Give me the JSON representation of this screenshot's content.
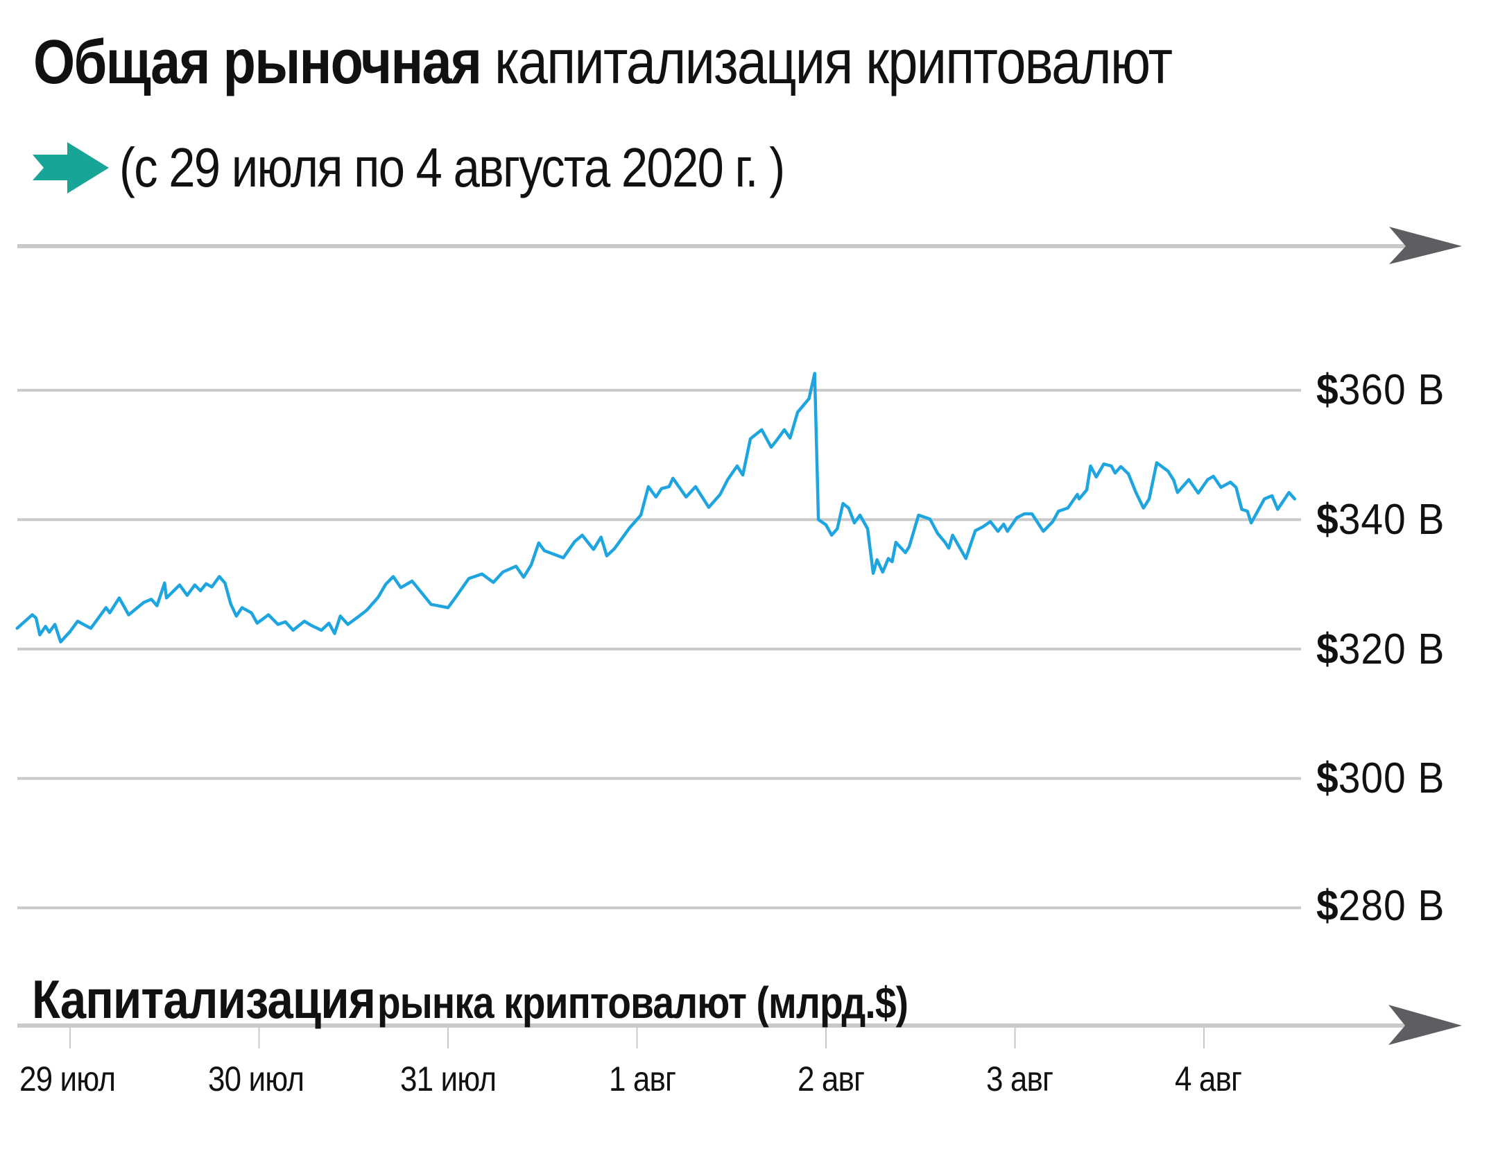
{
  "title": {
    "bold_part": "Общая рыночная",
    "light_part": "капитализация криптовалют"
  },
  "subtitle": {
    "icon": "teal-arrow-icon",
    "text": "(с 29 июля по 4 августа 2020 г. )"
  },
  "caption": {
    "big_part": "Капитализация",
    "small_part": "рынка криптовалют (млрд.$)"
  },
  "colors": {
    "line": "#1ea5e0",
    "accent_arrow": "#17a597",
    "grid": "#c9c9c9",
    "axis_arrowhead": "#5c5e61",
    "text": "#111111"
  },
  "y_axis": {
    "labels": [
      {
        "currency": "$",
        "amount": "360 B",
        "value": 360
      },
      {
        "currency": "$",
        "amount": "340 B",
        "value": 340
      },
      {
        "currency": "$",
        "amount": "320 B",
        "value": 320
      },
      {
        "currency": "$",
        "amount": "300 B",
        "value": 300
      },
      {
        "currency": "$",
        "amount": "280 B",
        "value": 280
      }
    ]
  },
  "x_axis": {
    "labels": [
      "29 июл",
      "30 июл",
      "31 июл",
      "1 авг",
      "2 авг",
      "3 авг",
      "4 авг"
    ]
  },
  "chart_data": {
    "type": "line",
    "title": "Общая рыночная капитализация криптовалют",
    "subtitle": "(с 29 июля по 4 августа 2020 г. )",
    "xlabel": "Капитализация рынка криптовалют (млрд.$)",
    "ylabel": "",
    "categories": [
      "29 июл",
      "30 июл",
      "31 июл",
      "1 авг",
      "2 авг",
      "3 авг",
      "4 авг"
    ],
    "x_unit": "days since 29 июл 00:00",
    "ylim": [
      280,
      360
    ],
    "yticks": [
      280,
      300,
      320,
      340,
      360
    ],
    "ytick_labels": [
      "$280 B",
      "$300 B",
      "$320 B",
      "$340 B",
      "$360 B"
    ],
    "y_axis_position": "right",
    "grid": true,
    "legend": "none",
    "series": [
      {
        "name": "Капитализация рынка криптовалют (млрд.$)",
        "x": [
          -0.28,
          -0.25,
          -0.2,
          -0.18,
          -0.16,
          -0.13,
          -0.11,
          -0.08,
          -0.05,
          0.0,
          0.04,
          0.11,
          0.19,
          0.21,
          0.26,
          0.31,
          0.39,
          0.43,
          0.46,
          0.5,
          0.51,
          0.58,
          0.62,
          0.66,
          0.69,
          0.72,
          0.75,
          0.79,
          0.82,
          0.85,
          0.88,
          0.91,
          0.96,
          0.99,
          1.05,
          1.1,
          1.14,
          1.18,
          1.24,
          1.28,
          1.33,
          1.37,
          1.4,
          1.43,
          1.47,
          1.53,
          1.57,
          1.63,
          1.67,
          1.71,
          1.75,
          1.81,
          1.91,
          2.0,
          2.04,
          2.11,
          2.18,
          2.24,
          2.29,
          2.36,
          2.4,
          2.44,
          2.48,
          2.51,
          2.61,
          2.67,
          2.71,
          2.77,
          2.81,
          2.84,
          2.88,
          2.96,
          3.02,
          3.06,
          3.1,
          3.13,
          3.17,
          3.19,
          3.26,
          3.31,
          3.38,
          3.44,
          3.48,
          3.53,
          3.56,
          3.6,
          3.66,
          3.71,
          3.74,
          3.78,
          3.81,
          3.85,
          3.91,
          3.94,
          3.96,
          4.0,
          4.03,
          4.06,
          4.09,
          4.12,
          4.15,
          4.18,
          4.22,
          4.25,
          4.27,
          4.3,
          4.33,
          4.35,
          4.37,
          4.42,
          4.44,
          4.49,
          4.55,
          4.59,
          4.63,
          4.65,
          4.67,
          4.74,
          4.79,
          4.83,
          4.87,
          4.91,
          4.94,
          4.96,
          5.01,
          5.05,
          5.09,
          5.15,
          5.2,
          5.23,
          5.28,
          5.33,
          5.34,
          5.38,
          5.4,
          5.43,
          5.47,
          5.51,
          5.53,
          5.56,
          5.6,
          5.64,
          5.68,
          5.71,
          5.75,
          5.81,
          5.84,
          5.86,
          5.92,
          5.97,
          6.02,
          6.05,
          6.09,
          6.14,
          6.17,
          6.2,
          6.23,
          6.25,
          6.32,
          6.36,
          6.39,
          6.45,
          6.48
        ],
        "values": [
          323.2,
          324.0,
          325.3,
          324.8,
          322.2,
          323.5,
          322.6,
          323.8,
          321.1,
          322.7,
          324.3,
          323.2,
          326.4,
          325.6,
          327.9,
          325.3,
          327.2,
          327.7,
          326.7,
          330.2,
          327.9,
          329.9,
          328.3,
          329.9,
          329.0,
          330.1,
          329.6,
          331.2,
          330.2,
          327.0,
          325.1,
          326.4,
          325.6,
          324.0,
          325.3,
          323.8,
          324.2,
          322.9,
          324.3,
          323.6,
          322.9,
          324.0,
          322.4,
          325.1,
          323.8,
          325.1,
          326.0,
          328.0,
          330.0,
          331.2,
          329.5,
          330.5,
          326.9,
          326.4,
          328.0,
          330.9,
          331.6,
          330.3,
          331.9,
          332.8,
          331.1,
          333.0,
          336.4,
          335.2,
          334.1,
          336.6,
          337.6,
          335.4,
          337.3,
          334.4,
          335.5,
          338.7,
          340.7,
          345.1,
          343.5,
          344.8,
          345.1,
          346.4,
          343.5,
          345.1,
          341.9,
          343.9,
          346.2,
          348.3,
          346.9,
          352.5,
          353.9,
          351.2,
          352.3,
          353.9,
          352.6,
          356.6,
          358.7,
          362.6,
          340.0,
          339.2,
          337.6,
          338.6,
          342.5,
          341.8,
          339.5,
          340.7,
          338.6,
          331.7,
          333.8,
          331.9,
          334.0,
          333.5,
          336.5,
          334.9,
          335.8,
          340.7,
          340.1,
          337.9,
          336.5,
          335.6,
          337.6,
          334.0,
          338.3,
          338.9,
          339.7,
          338.2,
          339.3,
          338.2,
          340.3,
          340.9,
          340.9,
          338.2,
          339.7,
          341.3,
          341.8,
          343.9,
          343.2,
          344.6,
          348.3,
          346.6,
          348.6,
          348.3,
          347.2,
          348.2,
          347.1,
          344.2,
          341.8,
          343.2,
          348.8,
          347.5,
          346.1,
          344.2,
          346.2,
          344.1,
          346.2,
          346.7,
          345.0,
          345.8,
          345.0,
          341.6,
          341.3,
          339.5,
          343.2,
          343.7,
          341.6,
          344.2,
          343.2
        ]
      }
    ]
  }
}
